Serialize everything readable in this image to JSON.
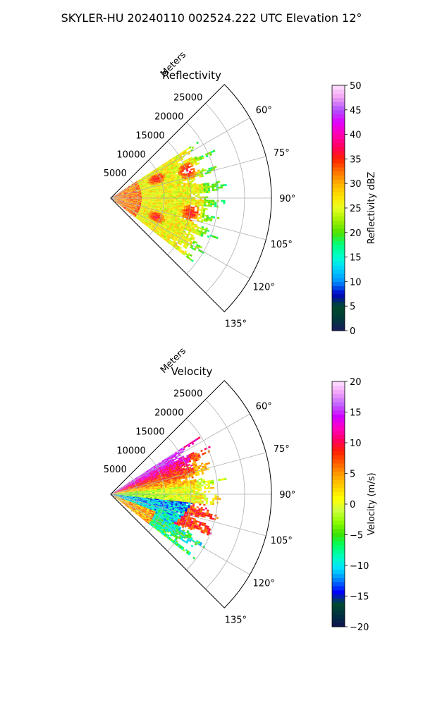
{
  "suptitle": "SKYLER-HU  20240110  002524.222 UTC Elevation 12°",
  "chart_data": [
    {
      "type": "heatmap",
      "subtype": "polar-ppi-sector",
      "title": "Reflectivity",
      "radial_label": "Meters",
      "radial_ticks": [
        "5000",
        "10000",
        "15000",
        "20000",
        "25000"
      ],
      "radial_tick_values": [
        5000,
        10000,
        15000,
        20000,
        25000
      ],
      "radial_max": 30000,
      "angle_ticks": [
        "60°",
        "75°",
        "90°",
        "105°",
        "120°",
        "135°"
      ],
      "angle_tick_values": [
        60,
        75,
        90,
        105,
        120,
        135
      ],
      "sector_range": [
        45,
        135
      ],
      "data_sector": [
        57,
        128
      ],
      "colorbar": {
        "label": "Reflectivity dBZ",
        "vmin": 0,
        "vmax": 50,
        "ticks": [
          "0",
          "5",
          "10",
          "15",
          "20",
          "25",
          "30",
          "35",
          "40",
          "45",
          "50"
        ],
        "tick_values": [
          0,
          5,
          10,
          15,
          20,
          25,
          30,
          35,
          40,
          45,
          50
        ]
      },
      "field_description": {
        "near_range_value": 32,
        "band_ranges_m": [
          9000,
          15000
        ],
        "band_value": 37,
        "mid_value": 26,
        "far_edge_value": 16
      }
    },
    {
      "type": "heatmap",
      "subtype": "polar-ppi-sector",
      "title": "Velocity",
      "radial_label": "Meters",
      "radial_ticks": [
        "5000",
        "10000",
        "15000",
        "20000",
        "25000"
      ],
      "radial_tick_values": [
        5000,
        10000,
        15000,
        20000,
        25000
      ],
      "radial_max": 30000,
      "angle_ticks": [
        "60°",
        "75°",
        "90°",
        "105°",
        "120°",
        "135°"
      ],
      "angle_tick_values": [
        60,
        75,
        90,
        105,
        120,
        135
      ],
      "sector_range": [
        45,
        135
      ],
      "data_sector": [
        57,
        128
      ],
      "colorbar": {
        "label": "Velocity (m/s)",
        "vmin": -20,
        "vmax": 20,
        "ticks": [
          "−20",
          "−15",
          "−10",
          "−5",
          "0",
          "5",
          "10",
          "15",
          "20"
        ],
        "tick_values": [
          -20,
          -15,
          -10,
          -5,
          0,
          5,
          10,
          15,
          20
        ]
      },
      "field_description": {
        "upper_sector_value": 10,
        "lower_sector_value": -7,
        "folding_boundary": true
      }
    }
  ],
  "colormaps": {
    "reflectivity": [
      "#1a1a5e",
      "#003a3a",
      "#004a2a",
      "#0000c8",
      "#0090ff",
      "#00d0ff",
      "#00ffd0",
      "#00ff80",
      "#50e000",
      "#a0f000",
      "#e8ff20",
      "#ffe000",
      "#ffb000",
      "#ff7000",
      "#ff2000",
      "#ff0060",
      "#ff00b0",
      "#e000ff",
      "#b050ff",
      "#f0a0f0",
      "#ffe0ff"
    ],
    "velocity": [
      "#101050",
      "#003040",
      "#004a30",
      "#0000ff",
      "#0080ff",
      "#00e0ff",
      "#00ffc0",
      "#00ff60",
      "#40e000",
      "#90ff00",
      "#d0ff40",
      "#ffff00",
      "#ffd000",
      "#ffa000",
      "#ff6000",
      "#ff2000",
      "#ff0060",
      "#ff00c0",
      "#d000ff",
      "#c060ff",
      "#f0a0f8",
      "#ffe0ff"
    ]
  }
}
